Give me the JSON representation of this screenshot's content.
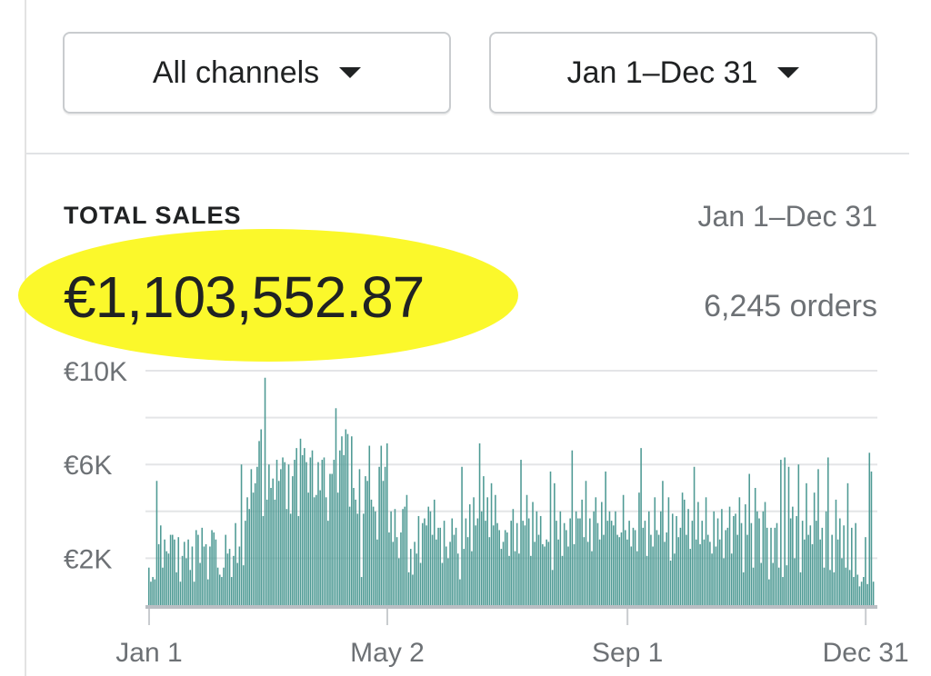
{
  "filters": {
    "channels_label": "All channels",
    "date_label": "Jan 1–Dec 31"
  },
  "summary": {
    "title": "TOTAL SALES",
    "date_range": "Jan 1–Dec 31",
    "total": "€1,103,552.87",
    "orders": "6,245 orders",
    "highlight_color": "#fbf82b"
  },
  "chart_data": {
    "type": "bar",
    "title": "",
    "xlabel": "",
    "ylabel": "",
    "ylim": [
      0,
      10000
    ],
    "y_ticks": [
      "€2K",
      "€6K",
      "€10K"
    ],
    "y_tick_values": [
      2000,
      6000,
      10000
    ],
    "x_tick_labels": [
      "Jan 1",
      "May 2",
      "Sep 1",
      "Dec 31"
    ],
    "x_tick_days": [
      1,
      122,
      244,
      365
    ],
    "bar_color": "#4e9a94",
    "series": [
      {
        "values": [
          1600,
          1000,
          1200,
          1100,
          5300,
          2600,
          3400,
          1600,
          2800,
          2300,
          2200,
          3000,
          3000,
          2800,
          1400,
          2900,
          1000,
          2100,
          2700,
          2000,
          2800,
          1500,
          2500,
          1000,
          3200,
          3000,
          1800,
          3300,
          2500,
          2600,
          1100,
          2500,
          3200,
          3100,
          2800,
          1600,
          1300,
          1200,
          1600,
          3000,
          2200,
          2400,
          1200,
          2100,
          3500,
          1800,
          2500,
          6000,
          1700,
          3600,
          4600,
          4100,
          5800,
          4800,
          5200,
          5900,
          7000,
          7500,
          3800,
          9700,
          4500,
          6000,
          5000,
          5400,
          4500,
          6200,
          5300,
          5800,
          6300,
          6100,
          4100,
          6000,
          3900,
          5500,
          6200,
          6700,
          3800,
          7100,
          6400,
          6700,
          6100,
          4800,
          6300,
          6600,
          4600,
          4700,
          6100,
          4900,
          6200,
          6300,
          4600,
          3600,
          5600,
          5600,
          6200,
          8400,
          4800,
          6600,
          7200,
          6400,
          7500,
          7300,
          4200,
          7200,
          5000,
          4500,
          3900,
          5800,
          1200,
          3900,
          5500,
          5300,
          6800,
          4500,
          4200,
          4000,
          2800,
          5900,
          6800,
          5300,
          5900,
          6900,
          3100,
          4000,
          2700,
          4100,
          2900,
          2000,
          3100,
          4100,
          4200,
          4700,
          1400,
          2400,
          1300,
          2700,
          2200,
          3800,
          1800,
          3500,
          3700,
          3400,
          4200,
          4000,
          3000,
          4500,
          2800,
          3300,
          3300,
          1800,
          3600,
          2500,
          2000,
          2700,
          3700,
          3000,
          3300,
          2200,
          1100,
          5900,
          2400,
          3700,
          2900,
          4300,
          2300,
          4600,
          3400,
          3700,
          6900,
          4000,
          5500,
          3600,
          4600,
          2900,
          5200,
          3400,
          4700,
          3500,
          3200,
          2400,
          2700,
          3200,
          3100,
          2100,
          3600,
          4100,
          2300,
          3500,
          2200,
          6200,
          3600,
          3400,
          4700,
          3700,
          2100,
          4400,
          2700,
          4000,
          3000,
          3800,
          2600,
          2500,
          2800,
          2700,
          5700,
          1500,
          5200,
          3600,
          2800,
          4000,
          2100,
          3500,
          3200,
          2500,
          3700,
          6600,
          2600,
          4000,
          3700,
          3700,
          4500,
          2900,
          5300,
          2700,
          3700,
          2300,
          4000,
          4600,
          3500,
          2800,
          4400,
          3000,
          5700,
          3600,
          4000,
          3600,
          3400,
          4000,
          3000,
          2900,
          3100,
          4700,
          3200,
          2800,
          3600,
          2500,
          3300,
          3200,
          2300,
          4800,
          6700,
          3300,
          3600,
          2100,
          4000,
          3000,
          2500,
          4600,
          3200,
          3000,
          4000,
          5300,
          2700,
          3100,
          4600,
          1900,
          3900,
          2200,
          3800,
          2900,
          3300,
          4800,
          4500,
          3000,
          4100,
          2400,
          3600,
          5900,
          2800,
          4400,
          2600,
          3600,
          2800,
          4600,
          3000,
          2700,
          2200,
          4000,
          2500,
          3700,
          2800,
          4100,
          2000,
          3200,
          3300,
          4200,
          2200,
          3800,
          3900,
          3000,
          4600,
          3500,
          1400,
          4300,
          3000,
          5600,
          3500,
          1600,
          5000,
          4000,
          3700,
          1800,
          4000,
          4400,
          3300,
          1100,
          3300,
          1800,
          3300,
          3500,
          1600,
          6200,
          1200,
          6300,
          1700,
          5900,
          3700,
          4200,
          2000,
          3800,
          6000,
          1400,
          3600,
          2800,
          5200,
          3000,
          3400,
          2600,
          4800,
          3600,
          5800,
          2800,
          3300,
          1600,
          4000,
          6300,
          1500,
          3000,
          1400,
          4500,
          2800,
          3700,
          2000,
          3400,
          1600,
          5200,
          1500,
          3300,
          1200,
          3500,
          1300,
          800,
          1000,
          1200,
          2900,
          900,
          6500,
          5700,
          1000
        ]
      }
    ]
  }
}
